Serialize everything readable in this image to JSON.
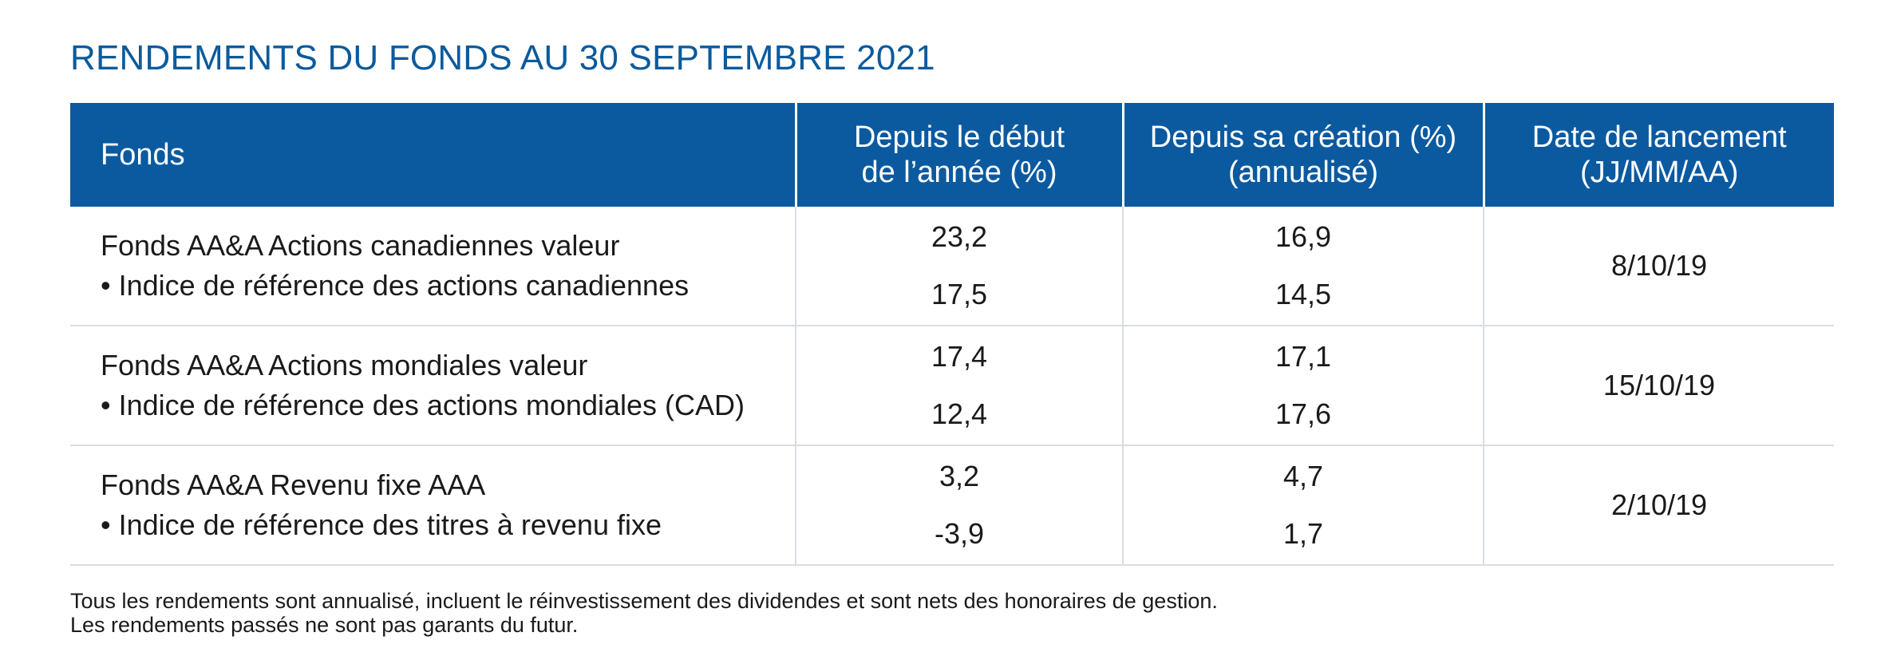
{
  "title": "RENDEMENTS DU FONDS AU 30 SEPTEMBRE 2021",
  "table": {
    "headers": {
      "fund": "Fonds",
      "ytd": [
        "Depuis le début",
        "de l’année (%)"
      ],
      "inception": [
        "Depuis sa création (%)",
        "(annualisé)"
      ],
      "launch": [
        "Date de lancement",
        "(JJ/MM/AA)"
      ]
    },
    "rows": [
      {
        "fund": "Fonds AA&A Actions canadiennes valeur",
        "benchmark": "Indice de référence des actions canadiennes",
        "ytd_fund": "23,2",
        "ytd_benchmark": "17,5",
        "inception_fund": "16,9",
        "inception_benchmark": "14,5",
        "launch_date": "8/10/19"
      },
      {
        "fund": "Fonds AA&A Actions mondiales valeur",
        "benchmark": "Indice de référence des actions mondiales (CAD)",
        "ytd_fund": "17,4",
        "ytd_benchmark": "12,4",
        "inception_fund": "17,1",
        "inception_benchmark": "17,6",
        "launch_date": "15/10/19"
      },
      {
        "fund": "Fonds AA&A Revenu fixe AAA",
        "benchmark": "Indice de référence des titres à revenu fixe",
        "ytd_fund": "3,2",
        "ytd_benchmark": "-3,9",
        "inception_fund": "4,7",
        "inception_benchmark": "1,7",
        "launch_date": "2/10/19"
      }
    ]
  },
  "bullet": "•",
  "footnotes": [
    "Tous les rendements sont annualisé, incluent le réinvestissement des dividendes et sont nets des honoraires de gestion.",
    "Les rendements passés ne sont pas garants du futur."
  ],
  "colors": {
    "title": "#0b5a9c",
    "header_bg": "#0b5aa0",
    "grid": "#d9dde2"
  }
}
